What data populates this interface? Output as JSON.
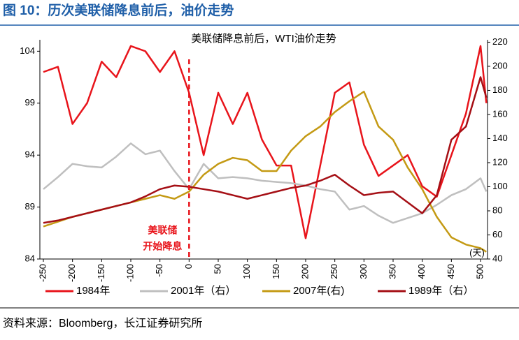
{
  "header": {
    "title": "图 10：历次美联储降息前后，油价走势"
  },
  "chart_data": {
    "type": "line",
    "title": "美联储降息前后，WTI油价走势",
    "annotations": [
      "美联储",
      "开始降息",
      "(天)"
    ],
    "vline": 0,
    "x": [
      -250,
      -225,
      -200,
      -175,
      -150,
      -125,
      -100,
      -75,
      -50,
      -25,
      0,
      25,
      50,
      75,
      100,
      125,
      150,
      175,
      200,
      225,
      250,
      275,
      300,
      325,
      350,
      375,
      400,
      425,
      450,
      475,
      500,
      510
    ],
    "xlim": [
      -256,
      512
    ],
    "xticks": [
      -250,
      -200,
      -150,
      -100,
      -50,
      0,
      50,
      100,
      150,
      200,
      250,
      300,
      350,
      400,
      450,
      500
    ],
    "ylim": [
      84,
      105.1
    ],
    "yticks": [
      84,
      89,
      94,
      99,
      104
    ],
    "y2lim": [
      40,
      222
    ],
    "y2ticks": [
      40,
      60,
      80,
      100,
      120,
      140,
      160,
      180,
      200,
      220
    ],
    "series": [
      {
        "name": "1984年",
        "color": "#e8141b",
        "axis": "y",
        "values": [
          102,
          102.5,
          97,
          99,
          103,
          101.5,
          104.5,
          104,
          102,
          104,
          100,
          94,
          100,
          97,
          100,
          95.5,
          93,
          93,
          86,
          93,
          100,
          101,
          95,
          92,
          93,
          94,
          91,
          90,
          94,
          98,
          104.5,
          99
        ]
      },
      {
        "name": "2001年（右）",
        "color": "#bfbfbf",
        "axis": "y2",
        "values": [
          98,
          108,
          119,
          117,
          116,
          125,
          136,
          127,
          130,
          113,
          98,
          119,
          107,
          108,
          107,
          105,
          104,
          103,
          101,
          98,
          96,
          81,
          84,
          76,
          70,
          74,
          78,
          85,
          93,
          98,
          107,
          96
        ]
      },
      {
        "name": "2007年(右)",
        "color": "#c49a14",
        "axis": "y2",
        "values": [
          67,
          71,
          75,
          78,
          81,
          84,
          87,
          90,
          93,
          90,
          96,
          110,
          119,
          124,
          122,
          113,
          113,
          130,
          142,
          150,
          162,
          171,
          179,
          150,
          139,
          116,
          98,
          75,
          58,
          52,
          49,
          46
        ]
      },
      {
        "name": "1989年（右）",
        "color": "#a50f15",
        "axis": "y2",
        "values": [
          70,
          72,
          75,
          78,
          81,
          84,
          87,
          92,
          98,
          101,
          100,
          98,
          96,
          93,
          90,
          93,
          96,
          99,
          101,
          105,
          110,
          101,
          93,
          95,
          96,
          87,
          78,
          93,
          139,
          150,
          191,
          174
        ]
      }
    ]
  },
  "source": "资料来源：Bloomberg，长江证券研究所"
}
